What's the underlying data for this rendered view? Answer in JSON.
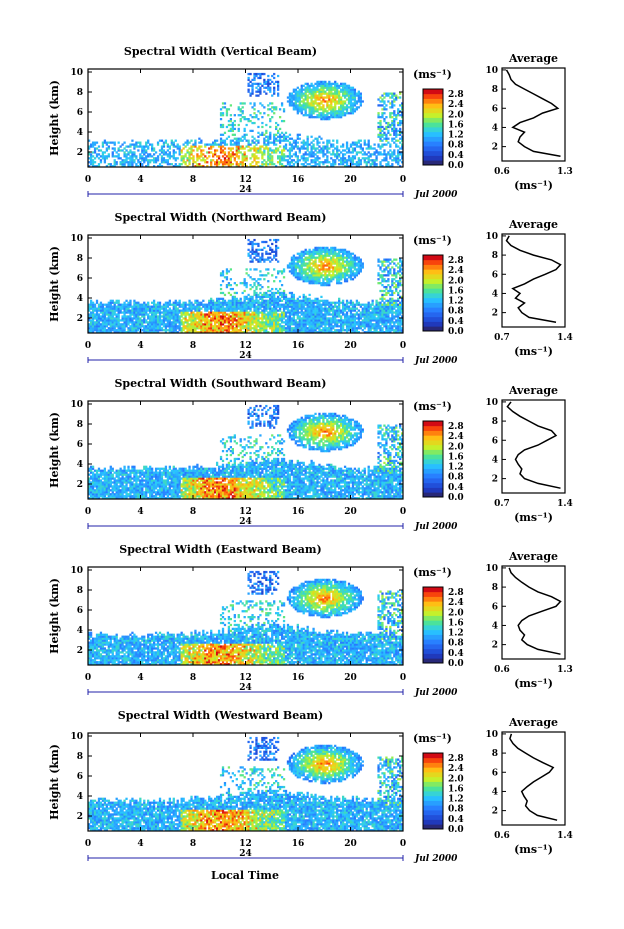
{
  "figure": {
    "bottom_xlabel": "Local Time",
    "date_label": "Jul 2000",
    "day_label": "24",
    "unit_label": "(ms⁻¹)",
    "average_title": "Average"
  },
  "chart_data": [
    {
      "type": "heatmap",
      "title": "Spectral Width (Vertical Beam)",
      "ylabel": "Height (km)",
      "xlabel": "Local Time",
      "x_ticks": [
        "0",
        "4",
        "8",
        "12",
        "16",
        "20",
        "0"
      ],
      "xlim": [
        0,
        24
      ],
      "y_ticks": [
        "2",
        "4",
        "6",
        "8",
        "10"
      ],
      "ylim": [
        0.5,
        10.3
      ],
      "colorbar": {
        "label": "(ms⁻¹)",
        "ticks": [
          "0.0",
          "0.4",
          "0.8",
          "1.2",
          "1.6",
          "2.0",
          "2.4",
          "2.8"
        ],
        "range": [
          0,
          3.0
        ]
      },
      "profile": {
        "title": "Average",
        "xlabel": "(ms⁻¹)",
        "x_ticks": [
          "0.6",
          "1.3"
        ],
        "xlim": [
          0.6,
          1.3
        ],
        "y_ticks": [
          "2",
          "4",
          "6",
          "8",
          "10"
        ],
        "heights": [
          1,
          1.5,
          2,
          2.5,
          3,
          3.5,
          4,
          4.5,
          5,
          5.5,
          6,
          6.5,
          7,
          7.5,
          8,
          8.5,
          9,
          9.5,
          10
        ],
        "values": [
          1.25,
          0.95,
          0.85,
          0.78,
          0.8,
          0.85,
          0.72,
          0.8,
          0.95,
          1.05,
          1.22,
          1.15,
          1.05,
          0.95,
          0.85,
          0.75,
          0.7,
          0.68,
          0.65
        ]
      }
    },
    {
      "type": "heatmap",
      "title": "Spectral Width (Northward Beam)",
      "ylabel": "Height (km)",
      "xlabel": "Local Time",
      "x_ticks": [
        "0",
        "4",
        "8",
        "12",
        "16",
        "20",
        "0"
      ],
      "xlim": [
        0,
        24
      ],
      "y_ticks": [
        "2",
        "4",
        "6",
        "8",
        "10"
      ],
      "ylim": [
        0.5,
        10.3
      ],
      "colorbar": {
        "label": "(ms⁻¹)",
        "ticks": [
          "0.0",
          "0.4",
          "0.8",
          "1.2",
          "1.6",
          "2.0",
          "2.4",
          "2.8"
        ],
        "range": [
          0,
          3.0
        ]
      },
      "profile": {
        "title": "Average",
        "xlabel": "(ms⁻¹)",
        "x_ticks": [
          "0.7",
          "1.4"
        ],
        "xlim": [
          0.7,
          1.4
        ],
        "y_ticks": [
          "2",
          "4",
          "6",
          "8",
          "10"
        ],
        "heights": [
          1,
          1.5,
          2,
          2.5,
          3,
          3.5,
          4,
          4.5,
          5,
          5.5,
          6,
          6.5,
          7,
          7.5,
          8,
          8.5,
          9,
          9.5,
          10
        ],
        "values": [
          1.3,
          1.0,
          0.92,
          0.88,
          0.95,
          0.85,
          0.9,
          0.82,
          0.95,
          1.05,
          1.18,
          1.3,
          1.35,
          1.25,
          1.05,
          0.9,
          0.8,
          0.75,
          0.78
        ]
      }
    },
    {
      "type": "heatmap",
      "title": "Spectral Width (Southward Beam)",
      "ylabel": "Height (km)",
      "xlabel": "Local Time",
      "x_ticks": [
        "0",
        "4",
        "8",
        "12",
        "16",
        "20",
        "0"
      ],
      "xlim": [
        0,
        24
      ],
      "y_ticks": [
        "2",
        "4",
        "6",
        "8",
        "10"
      ],
      "ylim": [
        0.5,
        10.3
      ],
      "colorbar": {
        "label": "(ms⁻¹)",
        "ticks": [
          "0.0",
          "0.4",
          "0.8",
          "1.2",
          "1.6",
          "2.0",
          "2.4",
          "2.8"
        ],
        "range": [
          0,
          3.0
        ]
      },
      "profile": {
        "title": "Average",
        "xlabel": "(ms⁻¹)",
        "x_ticks": [
          "0.7",
          "1.4"
        ],
        "xlim": [
          0.7,
          1.4
        ],
        "y_ticks": [
          "2",
          "4",
          "6",
          "8",
          "10"
        ],
        "heights": [
          1,
          1.5,
          2,
          2.5,
          3,
          3.5,
          4,
          4.5,
          5,
          5.5,
          6,
          6.5,
          7,
          7.5,
          8,
          8.5,
          9,
          9.5,
          10
        ],
        "values": [
          1.35,
          1.1,
          0.95,
          0.9,
          0.92,
          0.88,
          0.85,
          0.88,
          0.95,
          1.1,
          1.2,
          1.3,
          1.25,
          1.1,
          1.0,
          0.9,
          0.82,
          0.76,
          0.8
        ]
      }
    },
    {
      "type": "heatmap",
      "title": "Spectral Width (Eastward Beam)",
      "ylabel": "Height (km)",
      "xlabel": "Local Time",
      "x_ticks": [
        "0",
        "4",
        "8",
        "12",
        "16",
        "20",
        "0"
      ],
      "xlim": [
        0,
        24
      ],
      "y_ticks": [
        "2",
        "4",
        "6",
        "8",
        "10"
      ],
      "ylim": [
        0.5,
        10.3
      ],
      "colorbar": {
        "label": "(ms⁻¹)",
        "ticks": [
          "0.0",
          "0.4",
          "0.8",
          "1.2",
          "1.6",
          "2.0",
          "2.4",
          "2.8"
        ],
        "range": [
          0,
          3.0
        ]
      },
      "profile": {
        "title": "Average",
        "xlabel": "(ms⁻¹)",
        "x_ticks": [
          "0.6",
          "1.3"
        ],
        "xlim": [
          0.6,
          1.3
        ],
        "y_ticks": [
          "2",
          "4",
          "6",
          "8",
          "10"
        ],
        "heights": [
          1,
          1.5,
          2,
          2.5,
          3,
          3.5,
          4,
          4.5,
          5,
          5.5,
          6,
          6.5,
          7,
          7.5,
          8,
          8.5,
          9,
          9.5,
          10
        ],
        "values": [
          1.25,
          1.0,
          0.88,
          0.82,
          0.85,
          0.8,
          0.78,
          0.82,
          0.9,
          1.05,
          1.2,
          1.25,
          1.15,
          1.0,
          0.9,
          0.82,
          0.75,
          0.7,
          0.68
        ]
      }
    },
    {
      "type": "heatmap",
      "title": "Spectral Width (Westward Beam)",
      "ylabel": "Height (km)",
      "xlabel": "Local Time",
      "x_ticks": [
        "0",
        "4",
        "8",
        "12",
        "16",
        "20",
        "0"
      ],
      "xlim": [
        0,
        24
      ],
      "y_ticks": [
        "2",
        "4",
        "6",
        "8",
        "10"
      ],
      "ylim": [
        0.5,
        10.3
      ],
      "colorbar": {
        "label": "(ms⁻¹)",
        "ticks": [
          "0.0",
          "0.4",
          "0.8",
          "1.2",
          "1.6",
          "2.0",
          "2.4",
          "2.8"
        ],
        "range": [
          0,
          3.0
        ]
      },
      "profile": {
        "title": "Average",
        "xlabel": "(ms⁻¹)",
        "x_ticks": [
          "0.6",
          "1.4"
        ],
        "xlim": [
          0.6,
          1.4
        ],
        "y_ticks": [
          "2",
          "4",
          "6",
          "8",
          "10"
        ],
        "heights": [
          1,
          1.5,
          2,
          2.5,
          3,
          3.5,
          4,
          4.5,
          5,
          5.5,
          6,
          6.5,
          7,
          7.5,
          8,
          8.5,
          9,
          9.5,
          10
        ],
        "values": [
          1.3,
          1.05,
          0.95,
          0.9,
          0.92,
          0.88,
          0.85,
          0.92,
          1.0,
          1.1,
          1.2,
          1.25,
          1.12,
          1.0,
          0.9,
          0.8,
          0.74,
          0.7,
          0.72
        ]
      }
    }
  ]
}
